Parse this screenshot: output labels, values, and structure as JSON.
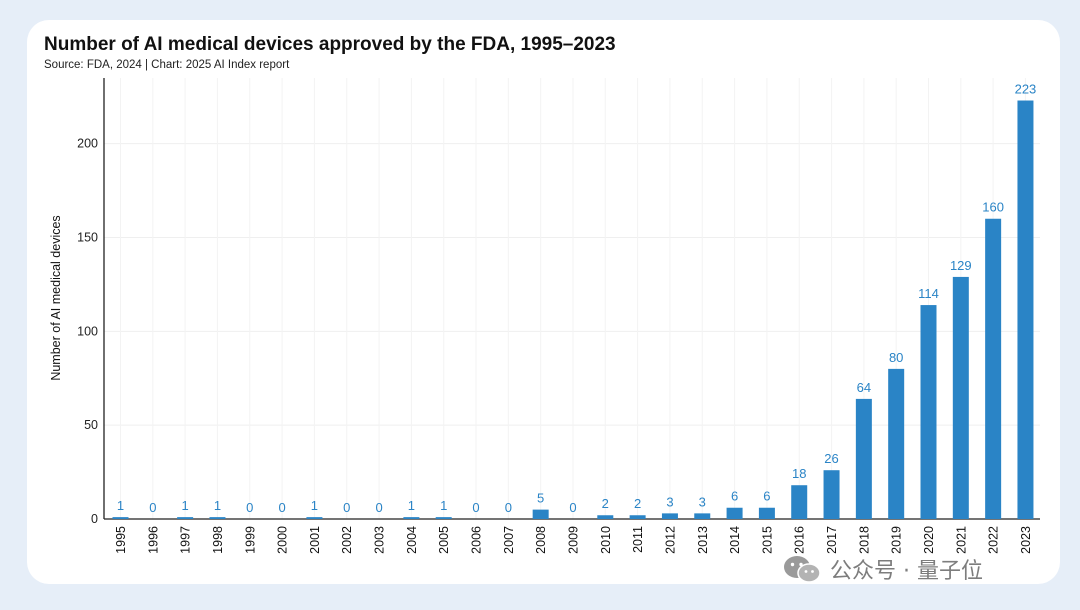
{
  "header": {
    "title": "Number of AI medical devices approved by the FDA, 1995–2023",
    "subtitle": "Source: FDA, 2024 | Chart: 2025 AI Index report"
  },
  "watermark": {
    "text": "公众号 · 量子位",
    "icon": "wechat-logo-icon"
  },
  "colors": {
    "bar": "#2a84c6",
    "label": "#2a84c6",
    "background": "#e6eef8"
  },
  "chart_data": {
    "type": "bar",
    "title": "Number of AI medical devices approved by the FDA, 1995–2023",
    "subtitle": "Source: FDA, 2024 | Chart: 2025 AI Index report",
    "xlabel": "",
    "ylabel": "Number of AI medical devices",
    "ylim": [
      0,
      235
    ],
    "yticks": [
      0,
      50,
      100,
      150,
      200
    ],
    "grid": true,
    "categories": [
      "1995",
      "1996",
      "1997",
      "1998",
      "1999",
      "2000",
      "2001",
      "2002",
      "2003",
      "2004",
      "2005",
      "2006",
      "2007",
      "2008",
      "2009",
      "2010",
      "2011",
      "2012",
      "2013",
      "2014",
      "2015",
      "2016",
      "2017",
      "2018",
      "2019",
      "2020",
      "2021",
      "2022",
      "2023"
    ],
    "values": [
      1,
      0,
      1,
      1,
      0,
      0,
      1,
      0,
      0,
      1,
      1,
      0,
      0,
      5,
      0,
      2,
      2,
      3,
      3,
      6,
      6,
      18,
      26,
      64,
      80,
      114,
      129,
      160,
      223
    ]
  }
}
